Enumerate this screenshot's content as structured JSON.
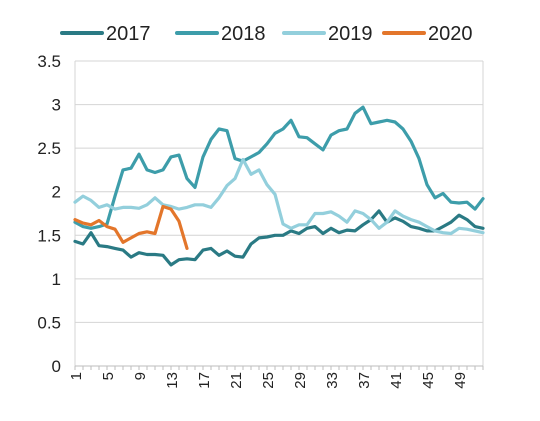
{
  "chart_data": {
    "type": "line",
    "title": "",
    "xlabel": "",
    "ylabel": "",
    "x": [
      1,
      2,
      3,
      4,
      5,
      6,
      7,
      8,
      9,
      10,
      11,
      12,
      13,
      14,
      15,
      16,
      17,
      18,
      19,
      20,
      21,
      22,
      23,
      24,
      25,
      26,
      27,
      28,
      29,
      30,
      31,
      32,
      33,
      34,
      35,
      36,
      37,
      38,
      39,
      40,
      41,
      42,
      43,
      44,
      45,
      46,
      47,
      48,
      49,
      50,
      51,
      52
    ],
    "x_tick_labels": [
      "1",
      "5",
      "9",
      "13",
      "17",
      "21",
      "25",
      "29",
      "33",
      "37",
      "41",
      "45",
      "49"
    ],
    "x_tick_values": [
      1,
      5,
      9,
      13,
      17,
      21,
      25,
      29,
      33,
      37,
      41,
      45,
      49
    ],
    "ylim": [
      0,
      3.5
    ],
    "y_ticks": [
      "0",
      "0.5",
      "1",
      "1.5",
      "2",
      "2.5",
      "3",
      "3.5"
    ],
    "grid": "horizontal",
    "legend_position": "top",
    "series": [
      {
        "name": "2017",
        "color": "#2a7a84",
        "values": [
          1.43,
          1.4,
          1.53,
          1.38,
          1.37,
          1.35,
          1.33,
          1.25,
          1.3,
          1.28,
          1.28,
          1.27,
          1.16,
          1.22,
          1.23,
          1.22,
          1.33,
          1.35,
          1.27,
          1.32,
          1.26,
          1.25,
          1.4,
          1.47,
          1.48,
          1.5,
          1.5,
          1.55,
          1.52,
          1.58,
          1.6,
          1.52,
          1.58,
          1.53,
          1.56,
          1.55,
          1.62,
          1.68,
          1.78,
          1.65,
          1.7,
          1.66,
          1.6,
          1.58,
          1.55,
          1.55,
          1.6,
          1.65,
          1.73,
          1.68,
          1.6,
          1.58
        ]
      },
      {
        "name": "2018",
        "color": "#3d9daa",
        "values": [
          1.65,
          1.6,
          1.58,
          1.6,
          1.63,
          1.95,
          2.25,
          2.27,
          2.43,
          2.25,
          2.22,
          2.25,
          2.4,
          2.42,
          2.15,
          2.05,
          2.4,
          2.6,
          2.72,
          2.7,
          2.38,
          2.35,
          2.4,
          2.45,
          2.55,
          2.67,
          2.72,
          2.82,
          2.63,
          2.62,
          2.55,
          2.48,
          2.65,
          2.7,
          2.72,
          2.9,
          2.97,
          2.78,
          2.8,
          2.82,
          2.8,
          2.72,
          2.58,
          2.38,
          2.08,
          1.93,
          1.98,
          1.88,
          1.87,
          1.88,
          1.8,
          1.92
        ]
      },
      {
        "name": "2019",
        "color": "#93cfdc",
        "values": [
          1.88,
          1.95,
          1.9,
          1.82,
          1.85,
          1.8,
          1.82,
          1.82,
          1.81,
          1.85,
          1.93,
          1.85,
          1.83,
          1.8,
          1.82,
          1.85,
          1.85,
          1.82,
          1.93,
          2.07,
          2.15,
          2.37,
          2.2,
          2.25,
          2.08,
          1.97,
          1.63,
          1.58,
          1.62,
          1.62,
          1.75,
          1.75,
          1.77,
          1.72,
          1.65,
          1.78,
          1.75,
          1.68,
          1.58,
          1.65,
          1.78,
          1.72,
          1.68,
          1.65,
          1.6,
          1.55,
          1.53,
          1.52,
          1.58,
          1.57,
          1.55,
          1.53
        ]
      },
      {
        "name": "2020",
        "color": "#e3762b",
        "values": [
          1.68,
          1.64,
          1.62,
          1.67,
          1.6,
          1.57,
          1.42,
          1.47,
          1.52,
          1.54,
          1.52,
          1.83,
          1.8,
          1.66,
          1.35,
          null,
          null,
          null,
          null,
          null,
          null,
          null,
          null,
          null,
          null,
          null,
          null,
          null,
          null,
          null,
          null,
          null,
          null,
          null,
          null,
          null,
          null,
          null,
          null,
          null,
          null,
          null,
          null,
          null,
          null,
          null,
          null,
          null,
          null,
          null,
          null,
          null
        ]
      }
    ]
  }
}
